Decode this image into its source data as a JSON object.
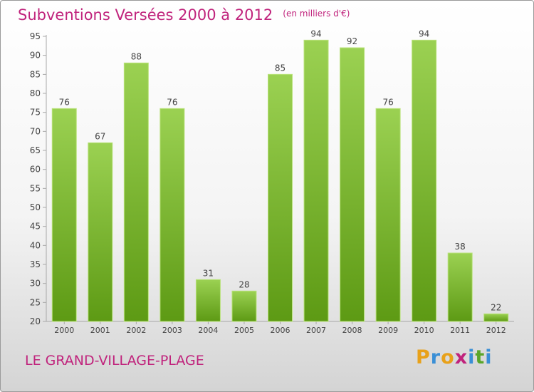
{
  "chart_data": {
    "type": "bar",
    "title": "Subventions Versées 2000 à 2012",
    "unit": "(en milliers d'€)",
    "categories": [
      "2000",
      "2001",
      "2002",
      "2003",
      "2004",
      "2005",
      "2006",
      "2007",
      "2008",
      "2009",
      "2010",
      "2011",
      "2012"
    ],
    "values": [
      76,
      67,
      88,
      76,
      31,
      28,
      85,
      94,
      92,
      76,
      94,
      38,
      22
    ],
    "ylim": [
      20,
      95
    ],
    "yticks": [
      20,
      25,
      30,
      35,
      40,
      45,
      50,
      55,
      60,
      65,
      70,
      75,
      80,
      85,
      90,
      95
    ],
    "grid": false,
    "bar_color": "#7fba3a"
  },
  "place_name": "LE GRAND-VILLAGE-PLAGE",
  "logo": {
    "text": "Proxiti",
    "letters": [
      "P",
      "r",
      "o",
      "x",
      "i",
      "t",
      "i"
    ]
  }
}
